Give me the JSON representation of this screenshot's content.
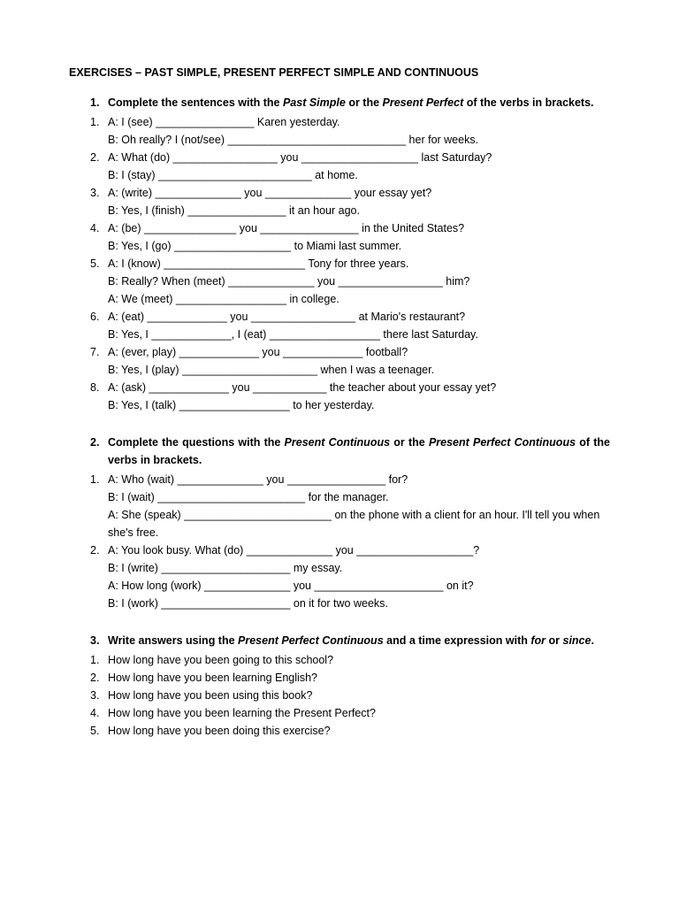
{
  "title": "EXERCISES – PAST SIMPLE, PRESENT PERFECT SIMPLE AND CONTINUOUS",
  "sections": [
    {
      "num": "1.",
      "instruction_html": "Complete the sentences with the <em>Past Simple</em> or the <em>Present Perfect</em> of the verbs in brackets.",
      "items": [
        {
          "num": "1.",
          "lines": [
            "A: I (see) ________________ Karen yesterday.",
            "B: Oh really? I (not/see) _____________________________ her for weeks."
          ]
        },
        {
          "num": "2.",
          "lines": [
            "A: What (do) _________________ you ___________________ last Saturday?",
            "B: I (stay) _________________________ at home."
          ]
        },
        {
          "num": "3.",
          "lines": [
            "A: (write) ______________ you ______________ your essay yet?",
            "B: Yes, I (finish) ________________ it an hour ago."
          ]
        },
        {
          "num": "4.",
          "lines": [
            "A: (be) _______________ you ________________ in the United States?",
            "B: Yes, I (go) ___________________ to Miami last summer."
          ]
        },
        {
          "num": "5.",
          "lines": [
            "A: I (know) _______________________ Tony for three years.",
            "B: Really? When (meet) ______________ you _________________ him?",
            "A: We (meet) __________________ in college."
          ]
        },
        {
          "num": "6.",
          "lines": [
            "A: (eat) _____________ you _________________ at Mario's restaurant?",
            "B: Yes, I _____________, I (eat) __________________ there last Saturday."
          ]
        },
        {
          "num": "7.",
          "lines": [
            "A: (ever, play) _____________ you _____________ football?",
            "B: Yes, I (play) ______________________ when I was a teenager."
          ]
        },
        {
          "num": "8.",
          "lines": [
            "A: (ask) _____________ you ____________ the teacher about your essay yet?",
            "B: Yes, I (talk) __________________ to her yesterday."
          ]
        }
      ]
    },
    {
      "num": "2.",
      "instruction_html": "Complete the questions with the <em>Present Continuous</em> or the <em>Present Perfect Continuous</em> of the verbs in brackets.",
      "justify": true,
      "items": [
        {
          "num": "1.",
          "lines": [
            "A: Who (wait) ______________ you ________________ for?",
            "B: I (wait) ________________________ for the manager.",
            "A: She (speak) ________________________ on the phone with a client for an hour. I'll tell you when she's free."
          ]
        },
        {
          "num": "2.",
          "lines": [
            "A: You look busy. What (do) ______________ you ___________________?",
            "B: I (write) _____________________ my essay.",
            "A: How long (work) ______________ you _____________________ on it?",
            "B: I (work) _____________________ on it for two weeks."
          ]
        }
      ]
    },
    {
      "num": "3.",
      "instruction_html": "Write answers using the <em>Present Perfect Continuous</em> and a time expression with <em>for</em> or <em>since</em>.",
      "justify": true,
      "items": [
        {
          "num": "1.",
          "lines": [
            "How long have you been going to this school?"
          ]
        },
        {
          "num": "2.",
          "lines": [
            "How long have you been learning English?"
          ]
        },
        {
          "num": "3.",
          "lines": [
            "How long have you been using this book?"
          ]
        },
        {
          "num": "4.",
          "lines": [
            "How long have you been learning the Present Perfect?"
          ]
        },
        {
          "num": "5.",
          "lines": [
            "How long have you been doing this exercise?"
          ]
        }
      ]
    }
  ]
}
